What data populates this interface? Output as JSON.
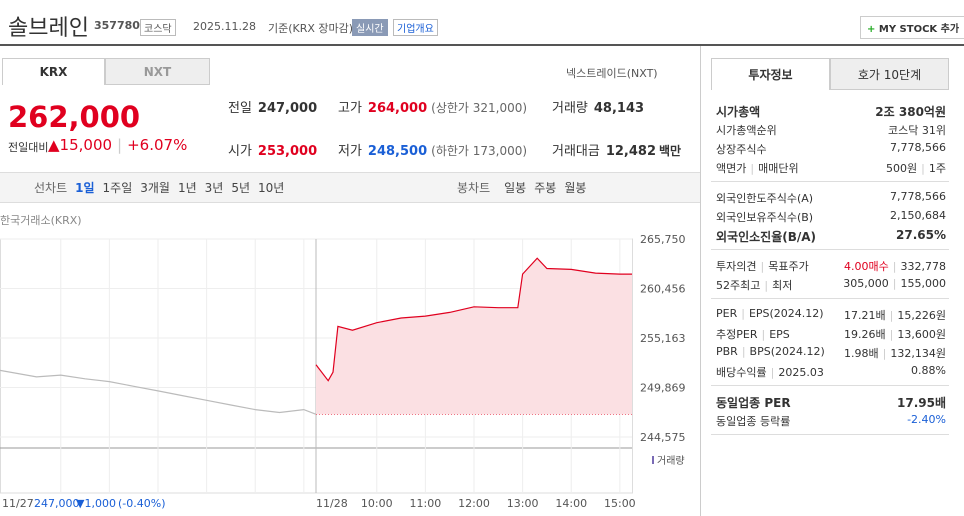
{
  "header": {
    "name": "솔브레인",
    "code": "357780",
    "market": "코스닥",
    "date": "2025.11.28",
    "basis": "기준(KRX 장마감)",
    "realtime": "실시간",
    "company": "기업개요",
    "mystock": "MY STOCK 추가"
  },
  "tabs": [
    "KRX",
    "NXT"
  ],
  "nextrade": "넥스트레이드(NXT)",
  "quote": {
    "price": "262,000",
    "change_label": "전일대비",
    "change": "15,000",
    "rate": "+6.07%"
  },
  "stats": [
    {
      "label": "전일",
      "value": "247,000"
    },
    {
      "label": "고가",
      "value": "264,000",
      "note": "(상한가 321,000)"
    },
    {
      "label": "거래량",
      "value": "48,143"
    },
    {
      "label": "시가",
      "value": "253,000"
    },
    {
      "label": "저가",
      "value": "248,500",
      "note": "(하한가 173,000)"
    },
    {
      "label": "거래대금",
      "value": "12,482",
      "unit": "백만"
    }
  ],
  "periods": {
    "label": "선차트",
    "items": [
      "1일",
      "1주일",
      "3개월",
      "1년",
      "3년",
      "5년",
      "10년"
    ],
    "candle_label": "봉차트",
    "candle_items": [
      "일봉",
      "주봉",
      "월봉"
    ]
  },
  "chart_data": {
    "type": "line",
    "source": "한국거래소(KRX)",
    "volume_label": "거래량",
    "ylim": [
      244575,
      265750
    ],
    "yticks": [
      {
        "value": 244575,
        "label": "244,575"
      },
      {
        "value": 249869,
        "label": "249,869"
      },
      {
        "value": 255163,
        "label": "255,163"
      },
      {
        "value": 260456,
        "label": "260,456"
      },
      {
        "value": 265750,
        "label": "265,750"
      }
    ],
    "xlim": [
      8.75,
      15.25
    ],
    "xticks": [
      {
        "value": 10,
        "label": "10:00"
      },
      {
        "value": 11,
        "label": "11:00"
      },
      {
        "value": 12,
        "label": "12:00"
      },
      {
        "value": 13,
        "label": "13:00"
      },
      {
        "value": 14,
        "label": "14:00"
      },
      {
        "value": 15,
        "label": "15:00"
      }
    ],
    "base": 247000,
    "prev_day": {
      "date": "11/27",
      "close": "247,000",
      "change": "▼1,000",
      "rate": "(-0.40%)",
      "color": "#bbbbbb",
      "x": [
        8.75,
        9.5,
        10,
        10.5,
        11,
        11.5,
        12,
        12.5,
        13,
        13.5,
        14,
        14.5,
        15,
        15.25
      ],
      "values": [
        251700,
        251000,
        251200,
        250800,
        250500,
        250000,
        249500,
        249000,
        248500,
        248000,
        247500,
        247200,
        247500,
        247000
      ]
    },
    "today": {
      "date": "11/28",
      "color": "#e0001f",
      "fill": "#fbe0e3",
      "x": [
        8.75,
        9,
        9.1,
        9.2,
        9.5,
        10,
        10.5,
        11,
        11.5,
        12,
        12.5,
        12.9,
        13,
        13.3,
        13.5,
        14,
        14.5,
        15,
        15.25
      ],
      "values": [
        252300,
        250600,
        251500,
        256400,
        256000,
        256800,
        257300,
        257500,
        257900,
        258500,
        258400,
        258400,
        262000,
        263700,
        262600,
        262500,
        262100,
        262000,
        262000
      ]
    }
  },
  "info": {
    "tabs": [
      "투자정보",
      "호가 10단계"
    ],
    "groups": [
      [
        {
          "label": [
            "시가총액"
          ],
          "value": [
            "2조 380억원"
          ],
          "bold": true
        },
        {
          "label": [
            "시가총액순위"
          ],
          "value": [
            "코스닥 31위"
          ]
        },
        {
          "label": [
            "상장주식수"
          ],
          "value": [
            "7,778,566"
          ]
        },
        {
          "label": [
            "액면가",
            "매매단위"
          ],
          "value": [
            "500원",
            "1주"
          ]
        }
      ],
      [
        {
          "label": [
            "외국인한도주식수(A)"
          ],
          "value": [
            "7,778,566"
          ]
        },
        {
          "label": [
            "외국인보유주식수(B)"
          ],
          "value": [
            "2,150,684"
          ]
        },
        {
          "label": [
            "외국인소진율(B/A)"
          ],
          "value": [
            "27.65%"
          ],
          "bold": true
        }
      ],
      [
        {
          "label": [
            "투자의견",
            "목표주가"
          ],
          "value": [
            "4.00매수",
            "332,778"
          ],
          "color": "#e0001f"
        },
        {
          "label": [
            "52주최고",
            "최저"
          ],
          "value": [
            "305,000",
            "155,000"
          ]
        }
      ],
      [
        {
          "label": [
            "PER",
            "EPS(2024.12)"
          ],
          "value": [
            "17.21배",
            "15,226원"
          ]
        },
        {
          "label": [
            "추정PER",
            "EPS"
          ],
          "value": [
            "19.26배",
            "13,600원"
          ]
        },
        {
          "label": [
            "PBR",
            "BPS(2024.12)"
          ],
          "value": [
            "1.98배",
            "132,134원"
          ]
        },
        {
          "label": [
            "배당수익률",
            "2025.03"
          ],
          "value": [
            "0.88%"
          ]
        }
      ],
      [
        {
          "label": [
            "동일업종 PER"
          ],
          "value": [
            "17.95배"
          ],
          "bold": true
        },
        {
          "label": [
            "동일업종 등락률"
          ],
          "value": [
            "-2.40%"
          ],
          "color": "#1a5fd6"
        }
      ]
    ]
  }
}
